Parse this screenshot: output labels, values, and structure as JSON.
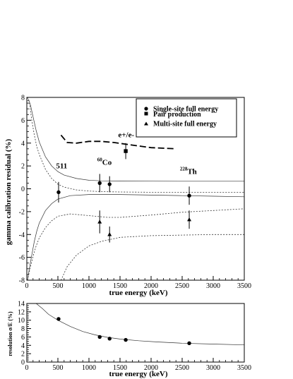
{
  "chart_data": [
    {
      "type": "scatter",
      "xlabel": "true energy (keV)",
      "ylabel": "gamma calibration residual (%)",
      "xlim": [
        0,
        3500
      ],
      "ylim": [
        -8,
        8
      ],
      "xticks": [
        0,
        500,
        1000,
        1500,
        2000,
        2500,
        3000,
        3500
      ],
      "yticks": [
        -8,
        -6,
        -4,
        -2,
        0,
        2,
        4,
        6,
        8
      ],
      "legend": {
        "position": "top-right",
        "entries": [
          {
            "label": "Single-site full energy",
            "marker": "circle"
          },
          {
            "label": "Pair production",
            "marker": "square"
          },
          {
            "label": "Multi-site full energy",
            "marker": "triangle"
          }
        ]
      },
      "annotations": [
        {
          "text": "511",
          "x": 560,
          "y": 1.8
        },
        {
          "sup": "60",
          "text": "Co",
          "x": 1250,
          "y": 2.1
        },
        {
          "text": "e+/e-",
          "x": 1600,
          "y": 4.5
        },
        {
          "sup": "228",
          "text": "Th",
          "x": 2600,
          "y": 1.3
        }
      ],
      "series": [
        {
          "name": "Single-site full energy",
          "marker": "circle",
          "x": [
            511,
            1173,
            1332,
            2614
          ],
          "y": [
            -0.3,
            0.5,
            0.4,
            -0.6
          ],
          "err": [
            0.9,
            0.8,
            0.7,
            0.8
          ]
        },
        {
          "name": "Pair production",
          "marker": "square",
          "x": [
            1592
          ],
          "y": [
            3.3
          ],
          "err": [
            0.7
          ]
        },
        {
          "name": "Multi-site full energy",
          "marker": "triangle",
          "x": [
            1173,
            1332,
            2614
          ],
          "y": [
            -2.9,
            -4.0,
            -2.7
          ],
          "err": [
            1.0,
            0.7,
            0.8
          ]
        }
      ],
      "curves": [
        {
          "id": "single-site-upper",
          "style": "solid-thin",
          "x": [
            10,
            30,
            60,
            100,
            150,
            200,
            300,
            400,
            500,
            600,
            800,
            1000,
            1200,
            1500,
            2000,
            2500,
            3000,
            3500
          ],
          "y": [
            7.7,
            7.8,
            7.3,
            6.3,
            5.1,
            4.1,
            2.8,
            2.0,
            1.5,
            1.2,
            0.9,
            0.75,
            0.7,
            0.68,
            0.67,
            0.66,
            0.66,
            0.66
          ]
        },
        {
          "id": "single-site-lower",
          "style": "solid-thin",
          "x": [
            10,
            40,
            80,
            120,
            160,
            200,
            300,
            400,
            500,
            700,
            1000,
            1500,
            2000,
            2500,
            3000,
            3500
          ],
          "y": [
            -8,
            -7.0,
            -5.8,
            -4.6,
            -3.7,
            -3.0,
            -1.9,
            -1.3,
            -0.9,
            -0.6,
            -0.5,
            -0.5,
            -0.55,
            -0.6,
            -0.65,
            -0.7
          ]
        },
        {
          "id": "multi-site-upper",
          "style": "dotted",
          "x": [
            10,
            40,
            80,
            120,
            160,
            200,
            300,
            400,
            500,
            600,
            800,
            1000,
            1200,
            1500,
            2000,
            2500,
            3000,
            3500
          ],
          "y": [
            8,
            7.6,
            6.0,
            4.7,
            3.7,
            3.0,
            1.7,
            0.9,
            0.4,
            0.15,
            -0.1,
            -0.2,
            -0.25,
            -0.28,
            -0.3,
            -0.3,
            -0.3,
            -0.3
          ]
        },
        {
          "id": "multi-site-mid",
          "style": "dotted",
          "x": [
            10,
            60,
            100,
            150,
            200,
            300,
            400,
            500,
            700,
            1000,
            1300,
            1500,
            2000,
            2500,
            3000,
            3500
          ],
          "y": [
            -8,
            -6.8,
            -5.9,
            -5.0,
            -4.3,
            -3.4,
            -2.8,
            -2.4,
            -2.2,
            -2.35,
            -2.5,
            -2.5,
            -2.3,
            -2.05,
            -1.9,
            -1.75
          ]
        },
        {
          "id": "multi-site-lower",
          "style": "dotted",
          "x": [
            550,
            650,
            800,
            1000,
            1200,
            1500,
            2000,
            2500,
            3000,
            3500
          ],
          "y": [
            -8,
            -6.8,
            -5.8,
            -5.0,
            -4.6,
            -4.25,
            -4.1,
            -4.05,
            -4.0,
            -4.0
          ]
        },
        {
          "id": "pair-production",
          "style": "dashed-thick",
          "x": [
            550,
            650,
            800,
            1000,
            1200,
            1400,
            1600,
            1800,
            2000,
            2200,
            2400
          ],
          "y": [
            4.7,
            4.05,
            4.0,
            4.15,
            4.15,
            4.05,
            3.9,
            3.75,
            3.6,
            3.55,
            3.5
          ]
        }
      ]
    },
    {
      "type": "scatter",
      "xlabel": "true energy (keV)",
      "ylabel": "resolution σ/E (%)",
      "xlim": [
        0,
        3500
      ],
      "ylim": [
        0,
        14
      ],
      "xticks": [
        0,
        500,
        1000,
        1500,
        2000,
        2500,
        3000,
        3500
      ],
      "yticks": [
        0,
        2,
        4,
        6,
        8,
        10,
        12,
        14
      ],
      "series": [
        {
          "marker": "circle",
          "x": [
            511,
            1173,
            1332,
            1592,
            2614
          ],
          "y": [
            10.3,
            6.0,
            5.6,
            5.3,
            4.5
          ]
        }
      ],
      "curves": [
        {
          "id": "resolution-fit",
          "style": "solid-thin",
          "x": [
            80,
            150,
            250,
            350,
            500,
            700,
            900,
            1100,
            1300,
            1500,
            1800,
            2100,
            2500,
            3000,
            3500
          ],
          "y": [
            14.6,
            14.2,
            12.8,
            11.4,
            10.0,
            8.5,
            7.3,
            6.5,
            5.9,
            5.5,
            5.1,
            4.8,
            4.5,
            4.3,
            4.1
          ]
        }
      ]
    }
  ]
}
